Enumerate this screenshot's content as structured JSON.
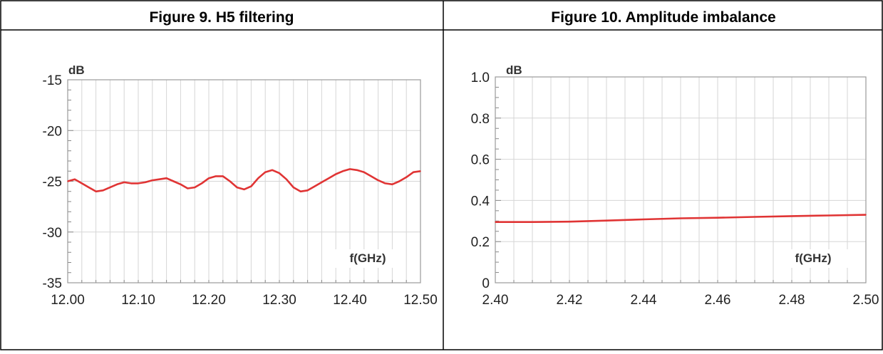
{
  "chart_data": [
    {
      "type": "line",
      "title": "Figure 9. H5 filtering",
      "xlabel": "f(GHz)",
      "ylabel": "dB",
      "xlim": [
        12.0,
        12.5
      ],
      "ylim": [
        -35,
        -15
      ],
      "grid": true,
      "xticks": [
        "12.00",
        "12.10",
        "12.20",
        "12.30",
        "12.40",
        "12.50"
      ],
      "yticks": [
        "-15",
        "-20",
        "-25",
        "-30",
        "-35"
      ],
      "color": "#e03434",
      "x": [
        12.0,
        12.01,
        12.02,
        12.03,
        12.04,
        12.05,
        12.06,
        12.07,
        12.08,
        12.09,
        12.1,
        12.11,
        12.12,
        12.13,
        12.14,
        12.15,
        12.16,
        12.17,
        12.18,
        12.19,
        12.2,
        12.21,
        12.22,
        12.23,
        12.24,
        12.25,
        12.26,
        12.27,
        12.28,
        12.29,
        12.3,
        12.31,
        12.32,
        12.33,
        12.34,
        12.35,
        12.36,
        12.37,
        12.38,
        12.39,
        12.4,
        12.41,
        12.42,
        12.43,
        12.44,
        12.45,
        12.46,
        12.47,
        12.48,
        12.49,
        12.5
      ],
      "y": [
        -25.0,
        -24.8,
        -25.2,
        -25.6,
        -26.0,
        -25.9,
        -25.6,
        -25.3,
        -25.1,
        -25.2,
        -25.2,
        -25.1,
        -24.9,
        -24.8,
        -24.7,
        -25.0,
        -25.3,
        -25.7,
        -25.6,
        -25.2,
        -24.7,
        -24.5,
        -24.5,
        -25.0,
        -25.6,
        -25.8,
        -25.5,
        -24.7,
        -24.1,
        -23.9,
        -24.2,
        -24.8,
        -25.6,
        -26.0,
        -25.9,
        -25.5,
        -25.1,
        -24.7,
        -24.3,
        -24.0,
        -23.8,
        -23.9,
        -24.1,
        -24.5,
        -24.9,
        -25.2,
        -25.3,
        -25.0,
        -24.6,
        -24.1,
        -24.0
      ]
    },
    {
      "type": "line",
      "title": "Figure 10. Amplitude imbalance",
      "xlabel": "f(GHz)",
      "ylabel": "dB",
      "xlim": [
        2.4,
        2.5
      ],
      "ylim": [
        0,
        1.0
      ],
      "grid": true,
      "xticks": [
        "2.40",
        "2.42",
        "2.44",
        "2.46",
        "2.48",
        "2.50"
      ],
      "yticks": [
        "1.0",
        "0.8",
        "0.6",
        "0.4",
        "0.2",
        "0"
      ],
      "color": "#e03434",
      "x": [
        2.4,
        2.41,
        2.42,
        2.43,
        2.44,
        2.45,
        2.46,
        2.47,
        2.48,
        2.49,
        2.5
      ],
      "y": [
        0.295,
        0.295,
        0.297,
        0.302,
        0.308,
        0.313,
        0.316,
        0.32,
        0.324,
        0.327,
        0.33
      ]
    }
  ]
}
